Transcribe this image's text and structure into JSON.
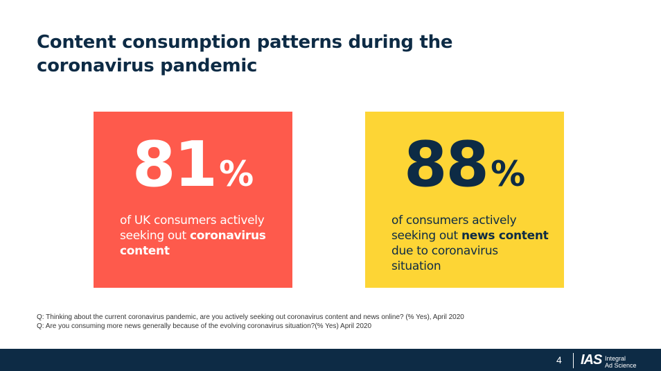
{
  "title": "Content consumption patterns during the coronavirus pandemic",
  "cards": [
    {
      "stat_number": "81",
      "stat_unit": "%",
      "desc_plain_1": "of UK consumers actively seeking out ",
      "desc_bold_1": "coronavirus content",
      "desc_plain_2": "",
      "color": "#fe5a4c"
    },
    {
      "stat_number": "88",
      "stat_unit": "%",
      "desc_plain_1": "of consumers actively seeking out ",
      "desc_bold_1": "news content",
      "desc_plain_2": " due to coronavirus situation",
      "color": "#fdd535"
    }
  ],
  "footnotes": [
    "Q: Thinking about the current coronavirus pandemic, are you actively seeking out coronavirus content and news online? (% Yes), April 2020",
    "Q: Are you consuming more news generally because of the evolving coronavirus situation?(% Yes) April 2020"
  ],
  "footer": {
    "page_number": "4",
    "logo_mark": "IAS",
    "logo_line1": "Integral",
    "logo_line2": "Ad Science",
    "color": "#0d2b45"
  }
}
